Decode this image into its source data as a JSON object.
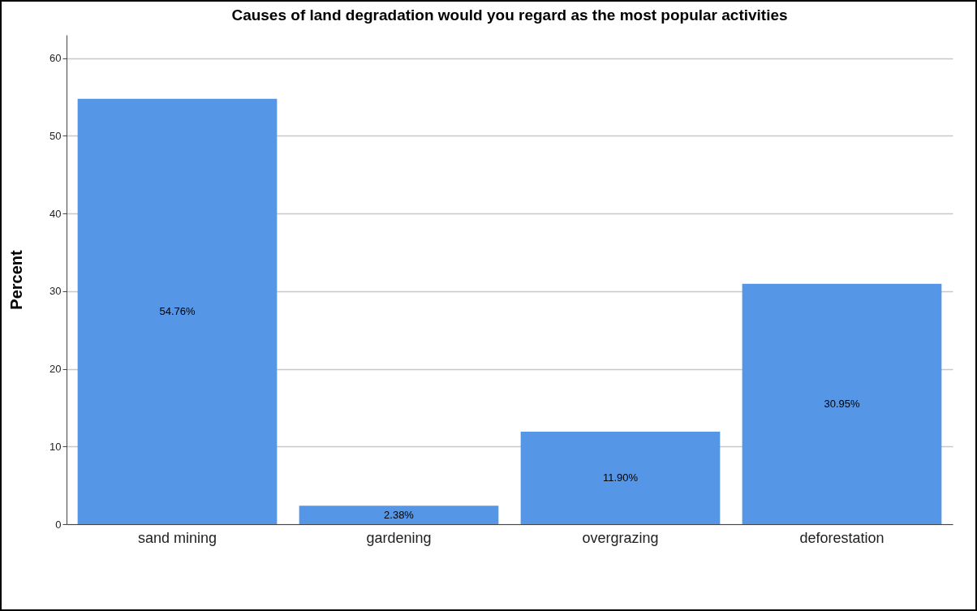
{
  "chart_data": {
    "type": "bar",
    "title": "Causes of land degradation would you regard as the most popular activities",
    "ylabel": "Percent",
    "categories": [
      "sand mining",
      "gardening",
      "overgrazing",
      "deforestation"
    ],
    "values": [
      54.76,
      2.38,
      11.9,
      30.95
    ],
    "value_labels": [
      "54.76%",
      "2.38%",
      "11.90%",
      "30.95%"
    ],
    "color": "#5596e6",
    "ylim": [
      0,
      63
    ],
    "yticks": [
      0,
      10,
      20,
      30,
      40,
      50,
      60
    ],
    "grid": "y"
  }
}
